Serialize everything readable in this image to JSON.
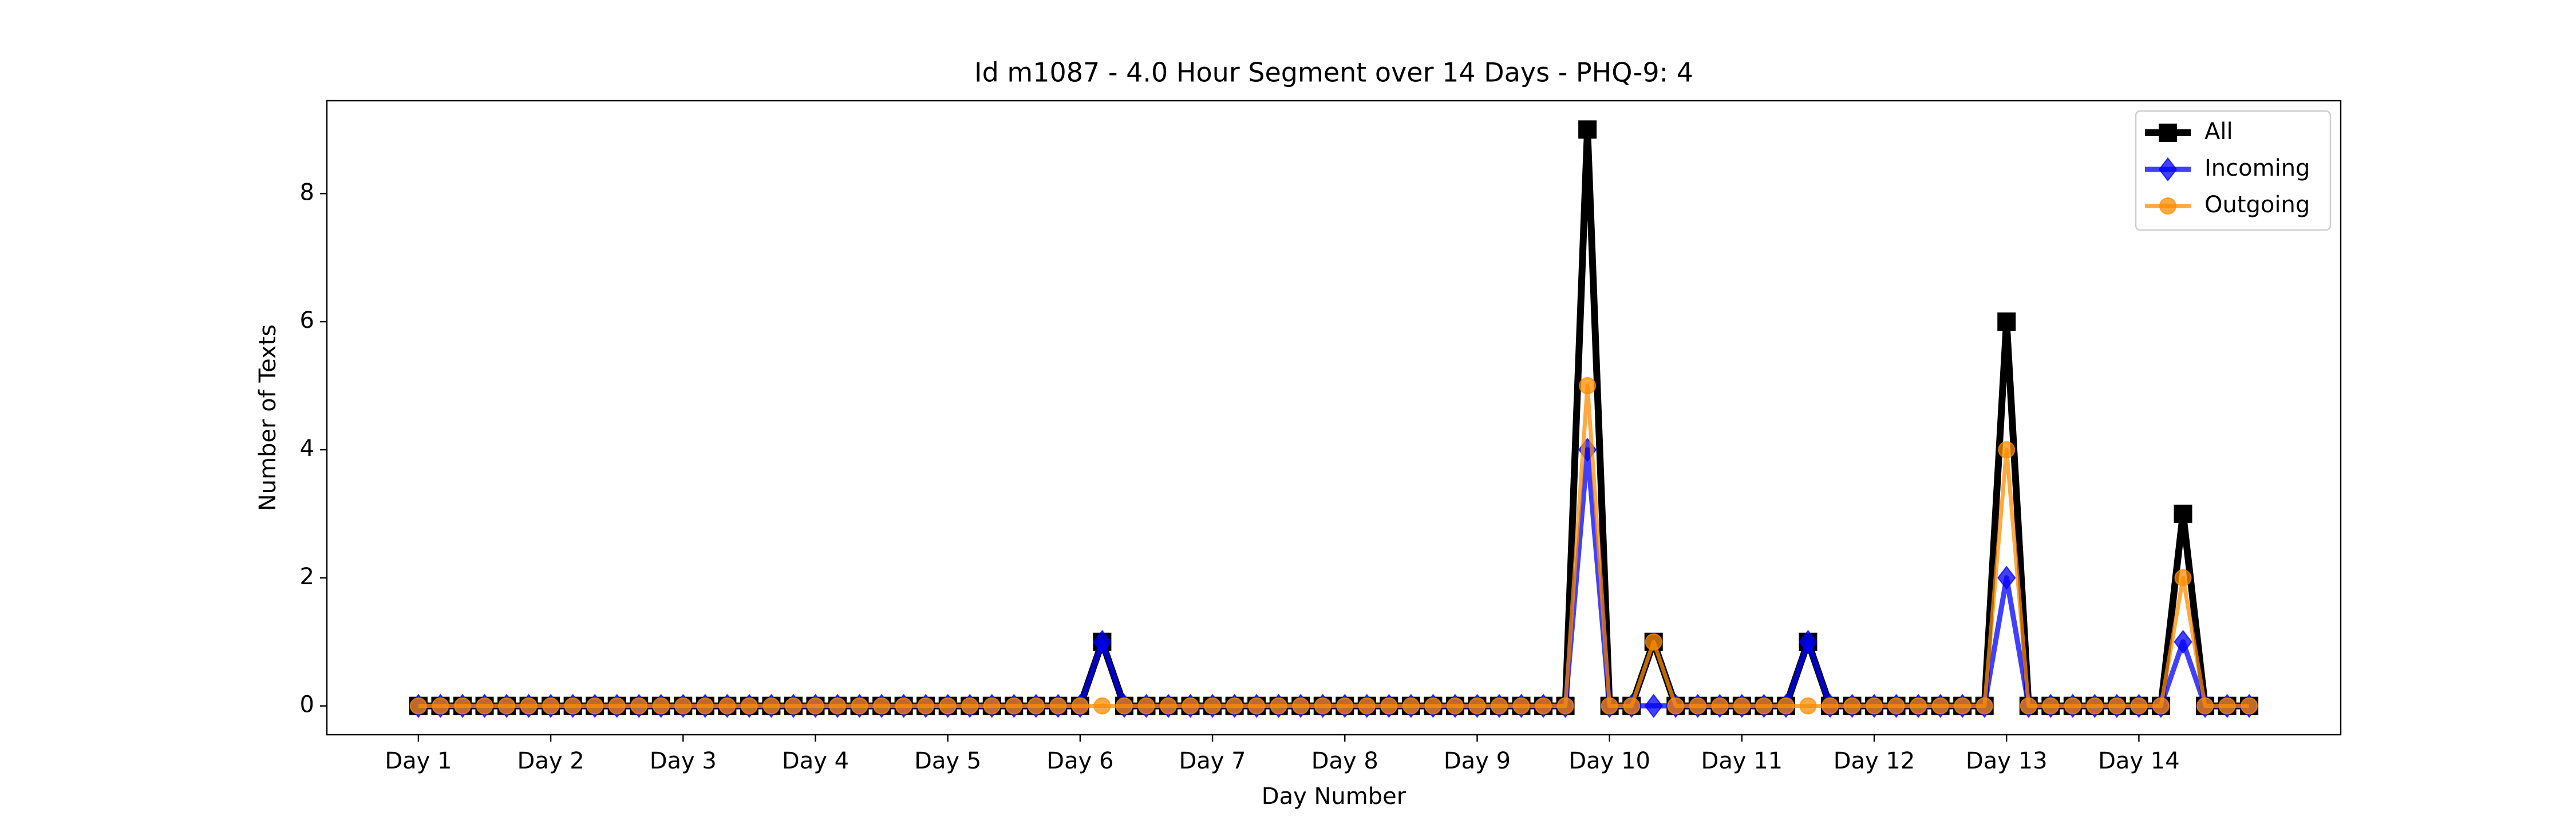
{
  "chart_data": {
    "type": "line",
    "title": "Id m1087 - 4.0 Hour Segment over 14 Days - PHQ-9: 4",
    "xlabel": "Day Number",
    "ylabel": "Number of Texts",
    "x": [
      0,
      1,
      2,
      3,
      4,
      5,
      6,
      7,
      8,
      9,
      10,
      11,
      12,
      13,
      14,
      15,
      16,
      17,
      18,
      19,
      20,
      21,
      22,
      23,
      24,
      25,
      26,
      27,
      28,
      29,
      30,
      31,
      32,
      33,
      34,
      35,
      36,
      37,
      38,
      39,
      40,
      41,
      42,
      43,
      44,
      45,
      46,
      47,
      48,
      49,
      50,
      51,
      52,
      53,
      54,
      55,
      56,
      57,
      58,
      59,
      60,
      61,
      62,
      63,
      64,
      65,
      66,
      67,
      68,
      69,
      70,
      71,
      72,
      73,
      74,
      75,
      76,
      77,
      78,
      79,
      80,
      81,
      82,
      83
    ],
    "series": [
      {
        "name": "All",
        "color": "#000000",
        "marker": "square",
        "alpha": 1,
        "values": [
          0,
          0,
          0,
          0,
          0,
          0,
          0,
          0,
          0,
          0,
          0,
          0,
          0,
          0,
          0,
          0,
          0,
          0,
          0,
          0,
          0,
          0,
          0,
          0,
          0,
          0,
          0,
          0,
          0,
          0,
          0,
          1,
          0,
          0,
          0,
          0,
          0,
          0,
          0,
          0,
          0,
          0,
          0,
          0,
          0,
          0,
          0,
          0,
          0,
          0,
          0,
          0,
          0,
          9,
          0,
          0,
          1,
          0,
          0,
          0,
          0,
          0,
          0,
          1,
          0,
          0,
          0,
          0,
          0,
          0,
          0,
          0,
          6,
          0,
          0,
          0,
          0,
          0,
          0,
          0,
          3,
          0,
          0,
          0
        ]
      },
      {
        "name": "Incoming",
        "color": "#0000ff",
        "marker": "diamond",
        "alpha": 0.75,
        "values": [
          0,
          0,
          0,
          0,
          0,
          0,
          0,
          0,
          0,
          0,
          0,
          0,
          0,
          0,
          0,
          0,
          0,
          0,
          0,
          0,
          0,
          0,
          0,
          0,
          0,
          0,
          0,
          0,
          0,
          0,
          0,
          1,
          0,
          0,
          0,
          0,
          0,
          0,
          0,
          0,
          0,
          0,
          0,
          0,
          0,
          0,
          0,
          0,
          0,
          0,
          0,
          0,
          0,
          4,
          0,
          0,
          0,
          0,
          0,
          0,
          0,
          0,
          0,
          1,
          0,
          0,
          0,
          0,
          0,
          0,
          0,
          0,
          2,
          0,
          0,
          0,
          0,
          0,
          0,
          0,
          1,
          0,
          0,
          0
        ]
      },
      {
        "name": "Outgoing",
        "color": "#ff8c00",
        "marker": "circle",
        "alpha": 0.75,
        "values": [
          0,
          0,
          0,
          0,
          0,
          0,
          0,
          0,
          0,
          0,
          0,
          0,
          0,
          0,
          0,
          0,
          0,
          0,
          0,
          0,
          0,
          0,
          0,
          0,
          0,
          0,
          0,
          0,
          0,
          0,
          0,
          0,
          0,
          0,
          0,
          0,
          0,
          0,
          0,
          0,
          0,
          0,
          0,
          0,
          0,
          0,
          0,
          0,
          0,
          0,
          0,
          0,
          0,
          5,
          0,
          0,
          1,
          0,
          0,
          0,
          0,
          0,
          0,
          0,
          0,
          0,
          0,
          0,
          0,
          0,
          0,
          0,
          4,
          0,
          0,
          0,
          0,
          0,
          0,
          0,
          2,
          0,
          0,
          0
        ]
      }
    ],
    "xlim": [
      -4.15,
      87.15
    ],
    "xticks": [
      {
        "value": 0,
        "label": "Day 1"
      },
      {
        "value": 6,
        "label": "Day 2"
      },
      {
        "value": 12,
        "label": "Day 3"
      },
      {
        "value": 18,
        "label": "Day 4"
      },
      {
        "value": 24,
        "label": "Day 5"
      },
      {
        "value": 30,
        "label": "Day 6"
      },
      {
        "value": 36,
        "label": "Day 7"
      },
      {
        "value": 42,
        "label": "Day 8"
      },
      {
        "value": 48,
        "label": "Day 9"
      },
      {
        "value": 54,
        "label": "Day 10"
      },
      {
        "value": 60,
        "label": "Day 11"
      },
      {
        "value": 66,
        "label": "Day 12"
      },
      {
        "value": 72,
        "label": "Day 13"
      },
      {
        "value": 78,
        "label": "Day 14"
      }
    ],
    "ylim": [
      -0.45,
      9.45
    ],
    "yticks": [
      0,
      2,
      4,
      6,
      8
    ],
    "grid": false,
    "legend": "upper right"
  }
}
